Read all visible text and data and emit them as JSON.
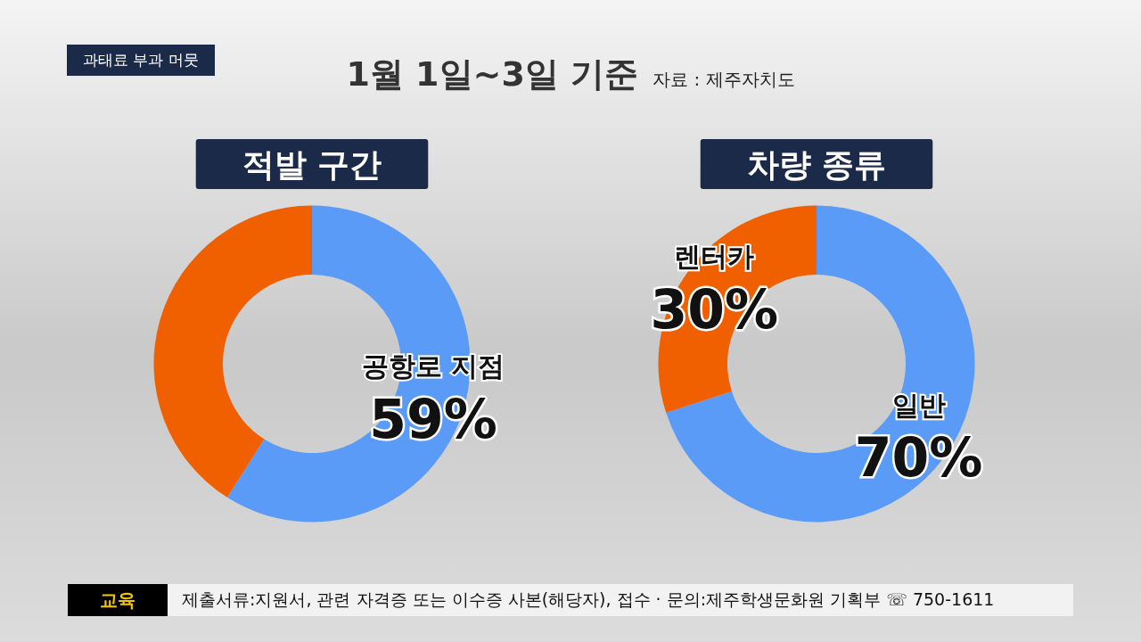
{
  "chart_data": [
    {
      "type": "donut",
      "title": "적발 구간",
      "subtitle": "1월 1일~3일 기준",
      "annotations": [
        "자료 : 제주자치도",
        "과태료 부과 머뭇",
        "교육",
        "제출서류:지원서, 관련 자격증 또는 이수증 사본(해당자), 접수 · 문의:제주학생문화원 기획부 ☏ 750-1611"
      ],
      "categories": [
        "공항로 지점",
        null
      ],
      "values": [
        59,
        41
      ],
      "colors": [
        "#5b9bf8",
        "#f06000"
      ],
      "value_labels": [
        "59%",
        null
      ],
      "legend": false
    },
    {
      "type": "donut",
      "title": "차량 종류",
      "categories": [
        "일반",
        "렌터카"
      ],
      "values": [
        70,
        30
      ],
      "colors": [
        "#5b9bf8",
        "#f06000"
      ],
      "value_labels": [
        "70%",
        "30%"
      ],
      "legend": false
    }
  ]
}
